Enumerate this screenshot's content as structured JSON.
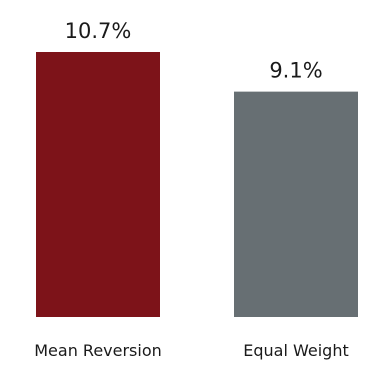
{
  "chart_data": {
    "type": "bar",
    "categories": [
      "Mean Reversion",
      "Equal Weight"
    ],
    "values": [
      10.7,
      9.1
    ],
    "value_labels": [
      "10.7%",
      "9.1%"
    ],
    "colors": [
      "#7d1319",
      "#676f73"
    ],
    "title": "",
    "xlabel": "",
    "ylabel": "",
    "ylim": [
      0,
      10.7
    ],
    "grid": false,
    "legend": "none"
  }
}
